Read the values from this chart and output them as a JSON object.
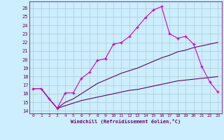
{
  "xlabel": "Windchill (Refroidissement éolien,°C)",
  "background_color": "#cceeff",
  "grid_color": "#aacccc",
  "line_color1": "#cc00cc",
  "line_color2": "#660066",
  "xlim": [
    -0.5,
    23.5
  ],
  "ylim": [
    13.7,
    26.8
  ],
  "xticks": [
    0,
    1,
    2,
    3,
    4,
    5,
    6,
    7,
    8,
    9,
    10,
    11,
    12,
    13,
    14,
    15,
    16,
    17,
    18,
    19,
    20,
    21,
    22,
    23
  ],
  "yticks": [
    14,
    15,
    16,
    17,
    18,
    19,
    20,
    21,
    22,
    23,
    24,
    25,
    26
  ],
  "line1_x": [
    0,
    1,
    2,
    3,
    4,
    5,
    6,
    7,
    8,
    9,
    10,
    11,
    12,
    13,
    14,
    15,
    16,
    17,
    18,
    19,
    20,
    21,
    22,
    23
  ],
  "line1_y": [
    16.6,
    16.6,
    15.4,
    14.3,
    16.1,
    16.1,
    17.8,
    18.5,
    19.9,
    20.1,
    21.8,
    22.0,
    22.7,
    23.8,
    24.9,
    25.8,
    26.2,
    23.0,
    22.5,
    22.7,
    21.8,
    19.2,
    17.4,
    16.2
  ],
  "line2_x": [
    0,
    1,
    2,
    3,
    4,
    5,
    6,
    7,
    8,
    9,
    10,
    11,
    12,
    13,
    14,
    15,
    16,
    17,
    18,
    19,
    20,
    21,
    22,
    23
  ],
  "line2_y": [
    16.6,
    16.6,
    15.4,
    14.3,
    15.0,
    15.4,
    16.0,
    16.6,
    17.2,
    17.6,
    18.0,
    18.4,
    18.7,
    19.0,
    19.4,
    19.8,
    20.2,
    20.5,
    20.9,
    21.1,
    21.4,
    21.6,
    21.8,
    22.0
  ],
  "line3_x": [
    0,
    1,
    2,
    3,
    4,
    5,
    6,
    7,
    8,
    9,
    10,
    11,
    12,
    13,
    14,
    15,
    16,
    17,
    18,
    19,
    20,
    21,
    22,
    23
  ],
  "line3_y": [
    16.6,
    16.6,
    15.4,
    14.3,
    14.6,
    14.9,
    15.2,
    15.4,
    15.6,
    15.8,
    16.0,
    16.2,
    16.4,
    16.5,
    16.7,
    16.9,
    17.1,
    17.3,
    17.5,
    17.6,
    17.7,
    17.8,
    17.9,
    18.0
  ]
}
